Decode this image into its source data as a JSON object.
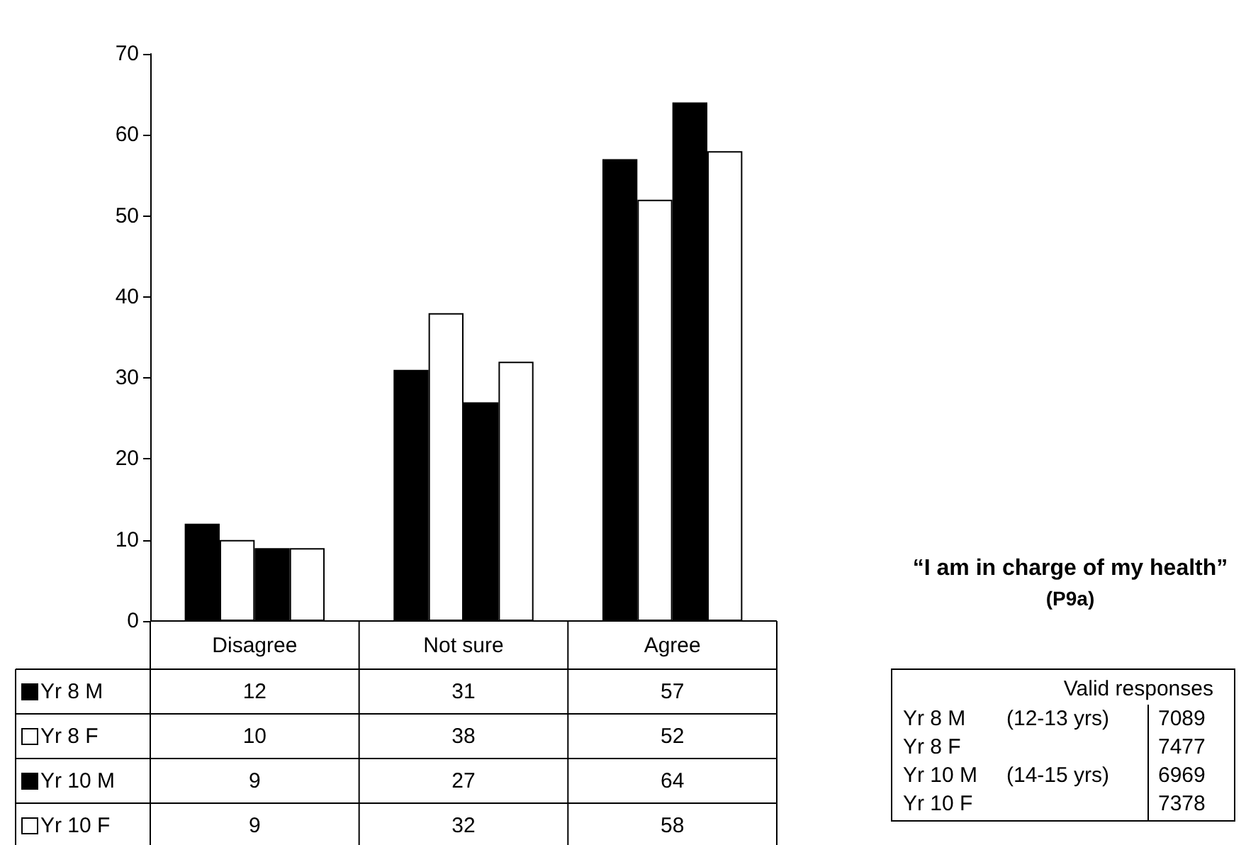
{
  "chart_data": {
    "type": "bar",
    "title": "“I am in charge of my health”",
    "subtitle": "(P9a)",
    "categories": [
      "Disagree",
      "Not sure",
      "Agree"
    ],
    "series": [
      {
        "name": "Yr 8 M",
        "color": "#000000",
        "values": [
          12,
          31,
          57
        ]
      },
      {
        "name": "Yr 8 F",
        "color": "#ffffff",
        "values": [
          10,
          38,
          52
        ]
      },
      {
        "name": "Yr 10 M",
        "color": "#000000",
        "values": [
          9,
          27,
          64
        ]
      },
      {
        "name": "Yr 10 F",
        "color": "#ffffff",
        "values": [
          9,
          32,
          58
        ]
      }
    ],
    "ylim": [
      0,
      70
    ],
    "yticks": [
      0,
      10,
      20,
      30,
      40,
      50,
      60,
      70
    ],
    "grid": false,
    "legend": "bottom left",
    "data_labels": true,
    "annotations": [
      "Valid responses",
      "Yr 8 M",
      "(12-13 yrs)",
      "7089",
      "Yr 8 F",
      "7477",
      "Yr 10 M",
      "(14-15 yrs)",
      "6969",
      "Yr 10 F",
      "7378"
    ]
  }
}
